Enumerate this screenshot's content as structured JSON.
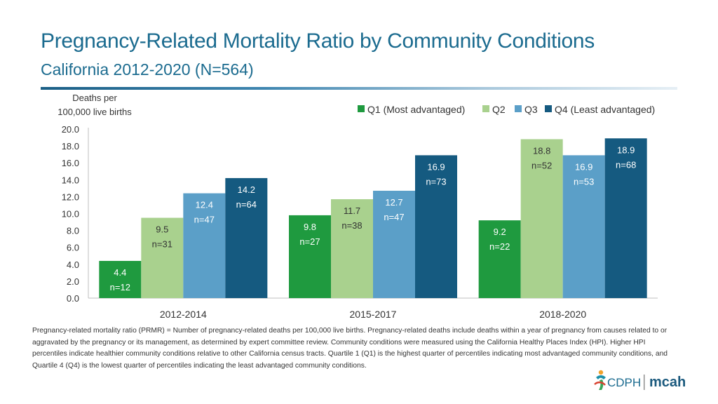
{
  "header": {
    "title": "Pregnancy-Related Mortality Ratio by Community Conditions",
    "subtitle": "California 2012-2020 (N=564)"
  },
  "footnote": "Pregnancy-related mortality ratio (PRMR) = Number of pregnancy-related deaths per 100,000 live births. Pregnancy-related deaths include deaths within a year of pregnancy from causes related to or aggravated by the pregnancy or its management, as determined by expert committee review. Community conditions were measured using the California Healthy Places Index (HPI). Higher HPI percentiles indicate healthier community conditions relative to other California census tracts. Quartile 1 (Q1) is the highest quarter of percentiles indicating most advantaged community conditions, and Quartile 4 (Q4) is the lowest quarter of percentiles indicating the least advantaged community conditions.",
  "logos": {
    "cdph": "CDPH",
    "mcah": "mcah"
  },
  "colors": {
    "q1": "#1f9a3f",
    "q2": "#a9d18e",
    "q3": "#5b9fc8",
    "q4": "#155a80",
    "title": "#1b6b8f"
  },
  "chart_data": {
    "type": "bar",
    "ylabel_lines": [
      "Deaths per",
      "100,000 live births"
    ],
    "ylim": [
      0,
      20
    ],
    "yticks": [
      "0.0",
      "2.0",
      "4.0",
      "6.0",
      "8.0",
      "10.0",
      "12.0",
      "14.0",
      "16.0",
      "18.0",
      "20.0"
    ],
    "categories": [
      "2012-2014",
      "2015-2017",
      "2018-2020"
    ],
    "series": [
      {
        "name": "Q1 (Most advantaged)",
        "color": "#1f9a3f",
        "values": [
          4.4,
          9.8,
          9.2
        ],
        "n": [
          "n=12",
          "n=27",
          "n=22"
        ]
      },
      {
        "name": "Q2",
        "color": "#a9d18e",
        "values": [
          9.5,
          11.7,
          18.8
        ],
        "n": [
          "n=31",
          "n=38",
          "n=52"
        ]
      },
      {
        "name": "Q3",
        "color": "#5b9fc8",
        "values": [
          12.4,
          12.7,
          16.9
        ],
        "n": [
          "n=47",
          "n=47",
          "n=53"
        ]
      },
      {
        "name": "Q4 (Least advantaged)",
        "color": "#155a80",
        "values": [
          14.2,
          16.9,
          18.9
        ],
        "n": [
          "n=64",
          "n=73",
          "n=68"
        ]
      }
    ],
    "legend_position": "top-right",
    "grid": false
  }
}
